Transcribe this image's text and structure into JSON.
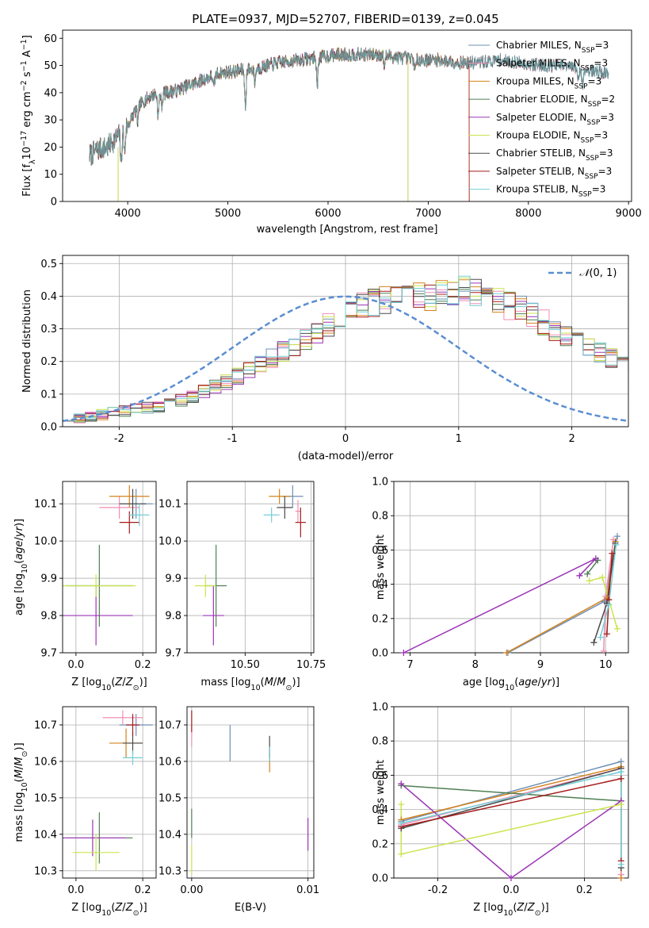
{
  "figure": {
    "title": "PLATE=0937, MJD=52707, FIBERID=0139, z=0.045"
  },
  "colors": {
    "Chabrier MILES": "#6e8fb3",
    "Salpeter MILES": "#f08fb4",
    "Kroupa MILES": "#d4821c",
    "Chabrier ELODIE": "#4f7f52",
    "Salpeter ELODIE": "#9b34b6",
    "Kroupa ELODIE": "#cbe44e",
    "Chabrier STELIB": "#4a4a4a",
    "Salpeter STELIB": "#a51c1c",
    "Kroupa STELIB": "#74cfd6",
    "normal": "#5b8ed0",
    "grid": "#b0b0b0"
  },
  "chart_data": [
    {
      "id": "spectrum",
      "type": "line",
      "title": "PLATE=0937, MJD=52707, FIBERID=0139, z=0.045",
      "xlabel": "wavelength [Angstrom, rest frame]",
      "ylabel": "Flux [fλ10⁻¹⁷ erg cm⁻² s⁻¹ A⁻¹]",
      "xlim": [
        3350,
        9030
      ],
      "ylim": [
        0,
        63
      ],
      "xticks": [
        4000,
        5000,
        6000,
        7000,
        8000,
        9000
      ],
      "yticks": [
        0,
        10,
        20,
        30,
        40,
        50,
        60
      ],
      "grid": false,
      "legend_position": "top-right",
      "x_range": [
        3620,
        8800
      ],
      "continuum": {
        "x": [
          3620,
          3700,
          3800,
          3900,
          4000,
          4100,
          4200,
          4300,
          4400,
          4500,
          4700,
          4900,
          5100,
          5300,
          5500,
          5700,
          5900,
          6100,
          6300,
          6500,
          6700,
          6900,
          7100,
          7300,
          7500,
          7700,
          7900,
          8100,
          8300,
          8500,
          8800
        ],
        "y": [
          17,
          19,
          20,
          24,
          28,
          35,
          38,
          40,
          40,
          41,
          44,
          47,
          48,
          49,
          51,
          52,
          53,
          54,
          54,
          54,
          53,
          52,
          52,
          51,
          51,
          52,
          51,
          50,
          50,
          49,
          47
        ]
      },
      "absorption_lines": [
        {
          "x": 3934,
          "depth": 12
        },
        {
          "x": 3969,
          "depth": 9
        },
        {
          "x": 4101,
          "depth": 6
        },
        {
          "x": 4304,
          "depth": 9
        },
        {
          "x": 4341,
          "depth": 5
        },
        {
          "x": 4861,
          "depth": 5
        },
        {
          "x": 5175,
          "depth": 14
        },
        {
          "x": 5270,
          "depth": 5
        },
        {
          "x": 5892,
          "depth": 11
        },
        {
          "x": 6563,
          "depth": 4
        },
        {
          "x": 6870,
          "depth": 4
        },
        {
          "x": 8498,
          "depth": 5
        },
        {
          "x": 8542,
          "depth": 7
        }
      ],
      "series": [
        {
          "name": "Chabrier MILES, N_SSP=3",
          "ssp": "SSP",
          "n": "=3",
          "prefix": "Chabrier MILES, N",
          "x_max": 8800
        },
        {
          "name": "Salpeter MILES, N_SSP=3",
          "ssp": "SSP",
          "n": "=3",
          "prefix": "Salpeter MILES, N",
          "x_max": 8800
        },
        {
          "name": "Kroupa MILES, N_SSP=3",
          "ssp": "SSP",
          "n": "=3",
          "prefix": "Kroupa MILES, N",
          "x_max": 7410
        },
        {
          "name": "Chabrier ELODIE, N_SSP=2",
          "ssp": "SSP",
          "n": "=2",
          "prefix": "Chabrier ELODIE, N",
          "x_max": 6800
        },
        {
          "name": "Salpeter ELODIE, N_SSP=3",
          "ssp": "SSP",
          "n": "=3",
          "prefix": "Salpeter ELODIE, N",
          "x_max": 6800
        },
        {
          "name": "Kroupa ELODIE, N_SSP=3",
          "ssp": "SSP",
          "n": "=3",
          "prefix": "Kroupa ELODIE, N",
          "x_max": 6800
        },
        {
          "name": "Chabrier STELIB, N_SSP=3",
          "ssp": "SSP",
          "n": "=3",
          "prefix": "Chabrier STELIB, N",
          "x_max": 8800
        },
        {
          "name": "Salpeter STELIB, N_SSP=3",
          "ssp": "SSP",
          "n": "=3",
          "prefix": "Salpeter STELIB, N",
          "x_max": 7410
        },
        {
          "name": "Kroupa STELIB, N_SSP=3",
          "ssp": "SSP",
          "n": "=3",
          "prefix": "Kroupa STELIB, N",
          "x_max": 8800
        }
      ]
    },
    {
      "id": "residuals",
      "type": "area",
      "xlabel": "(data-model)/error",
      "ylabel": "Normed distribution",
      "xlim": [
        -2.5,
        2.5
      ],
      "ylim": [
        0,
        0.525
      ],
      "xticks": [
        -2,
        -1,
        0,
        1,
        2
      ],
      "yticks": [
        0.0,
        0.1,
        0.2,
        0.3,
        0.4,
        0.5
      ],
      "grid": true,
      "legend_position": "top-right",
      "normal_curve": {
        "name": "N(0,1)",
        "mu": 0,
        "sigma": 1
      },
      "bin_start": -2.5,
      "bin_width": 0.1,
      "base_histogram": [
        0.022,
        0.028,
        0.032,
        0.038,
        0.042,
        0.048,
        0.052,
        0.058,
        0.065,
        0.073,
        0.082,
        0.095,
        0.108,
        0.12,
        0.138,
        0.155,
        0.175,
        0.19,
        0.21,
        0.23,
        0.245,
        0.265,
        0.29,
        0.31,
        0.33,
        0.35,
        0.37,
        0.38,
        0.39,
        0.4,
        0.42,
        0.41,
        0.39,
        0.41,
        0.4,
        0.42,
        0.41,
        0.4,
        0.39,
        0.37,
        0.36,
        0.34,
        0.32,
        0.3,
        0.28,
        0.26,
        0.24,
        0.23,
        0.21,
        0.19,
        0.17,
        0.155,
        0.14,
        0.12,
        0.11,
        0.095,
        0.085,
        0.07,
        0.06,
        0.05,
        0.045,
        0.04,
        0.035,
        0.03,
        0.028,
        0.025,
        0.022,
        0.02,
        0.018,
        0.016
      ]
    },
    {
      "id": "age-vs-z",
      "type": "scatter",
      "xlabel": "Z [log10(Z/Z⊙)]",
      "ylabel": "age  [log10(age/yr)]",
      "xlim": [
        -0.04,
        0.24
      ],
      "ylim": [
        9.7,
        10.16
      ],
      "xticks": [
        0.0,
        0.2
      ],
      "yticks": [
        9.7,
        9.8,
        9.9,
        10.0,
        10.1
      ],
      "grid": true,
      "points": [
        {
          "s": 0,
          "x": 0.18,
          "y": 10.1,
          "xerr": 0.05,
          "yerr": 0.04
        },
        {
          "s": 1,
          "x": 0.13,
          "y": 10.09,
          "xerr": 0.06,
          "yerr": 0.03
        },
        {
          "s": 2,
          "x": 0.16,
          "y": 10.12,
          "xerr": 0.06,
          "yerr": 0.03
        },
        {
          "s": 3,
          "x": 0.07,
          "y": 9.88,
          "xerr": 0.1,
          "yerr": 0.11
        },
        {
          "s": 4,
          "x": 0.06,
          "y": 9.8,
          "xerr": 0.11,
          "yerr": 0.08
        },
        {
          "s": 5,
          "x": 0.06,
          "y": 9.88,
          "xerr": 0.12,
          "yerr": 0.03
        },
        {
          "s": 6,
          "x": 0.17,
          "y": 10.1,
          "xerr": 0.04,
          "yerr": 0.04
        },
        {
          "s": 7,
          "x": 0.16,
          "y": 10.05,
          "xerr": 0.03,
          "yerr": 0.03
        },
        {
          "s": 8,
          "x": 0.19,
          "y": 10.07,
          "xerr": 0.03,
          "yerr": 0.03
        }
      ]
    },
    {
      "id": "age-vs-mass",
      "type": "scatter",
      "xlabel": "mass [log10(M/M⊙)]",
      "xlim": [
        10.28,
        10.76
      ],
      "ylim": [
        9.7,
        10.16
      ],
      "xticks": [
        10.5,
        10.75
      ],
      "yticks": [
        9.7,
        9.8,
        9.9,
        10.0,
        10.1
      ],
      "grid": true,
      "points": [
        {
          "s": 0,
          "x": 10.68,
          "y": 10.12,
          "xerr": 0.04,
          "yerr": 0.03
        },
        {
          "s": 1,
          "x": 10.7,
          "y": 10.08,
          "xerr": 0.01,
          "yerr": 0.03
        },
        {
          "s": 2,
          "x": 10.63,
          "y": 10.12,
          "xerr": 0.04,
          "yerr": 0.02
        },
        {
          "s": 3,
          "x": 10.39,
          "y": 9.88,
          "xerr": 0.04,
          "yerr": 0.11
        },
        {
          "s": 4,
          "x": 10.38,
          "y": 9.8,
          "xerr": 0.04,
          "yerr": 0.08
        },
        {
          "s": 5,
          "x": 10.35,
          "y": 9.88,
          "xerr": 0.04,
          "yerr": 0.03
        },
        {
          "s": 6,
          "x": 10.65,
          "y": 10.09,
          "xerr": 0.03,
          "yerr": 0.03
        },
        {
          "s": 7,
          "x": 10.71,
          "y": 10.05,
          "xerr": 0.02,
          "yerr": 0.04
        },
        {
          "s": 8,
          "x": 10.6,
          "y": 10.07,
          "xerr": 0.03,
          "yerr": 0.02
        }
      ]
    },
    {
      "id": "weight-vs-age",
      "type": "line",
      "xlabel": "age  [log10(age/yr)]",
      "ylabel": "mass weight",
      "xlim": [
        6.75,
        10.35
      ],
      "ylim": [
        0,
        1.0
      ],
      "xticks": [
        7,
        8,
        9,
        10
      ],
      "yticks": [
        0.0,
        0.2,
        0.4,
        0.6,
        0.8,
        1.0
      ],
      "grid": true,
      "series": [
        {
          "s": 0,
          "x": [
            10.18,
            9.98,
            8.5
          ],
          "y": [
            0.68,
            0.3,
            0.0
          ]
        },
        {
          "s": 1,
          "x": [
            10.12,
            10.0,
            9.97
          ],
          "y": [
            0.66,
            0.33,
            0.01
          ]
        },
        {
          "s": 2,
          "x": [
            10.15,
            10.02,
            8.48
          ],
          "y": [
            0.65,
            0.32,
            0.0
          ]
        },
        {
          "s": 3,
          "x": [
            9.72,
            9.88
          ],
          "y": [
            0.46,
            0.54
          ]
        },
        {
          "s": 4,
          "x": [
            9.6,
            9.85,
            6.9
          ],
          "y": [
            0.45,
            0.55,
            0.0
          ]
        },
        {
          "s": 5,
          "x": [
            9.75,
            9.95,
            10.18
          ],
          "y": [
            0.42,
            0.44,
            0.14
          ]
        },
        {
          "s": 6,
          "x": [
            10.15,
            10.02,
            9.82
          ],
          "y": [
            0.64,
            0.29,
            0.06
          ]
        },
        {
          "s": 7,
          "x": [
            10.1,
            10.05,
            10.02
          ],
          "y": [
            0.58,
            0.31,
            0.11
          ]
        },
        {
          "s": 8,
          "x": [
            10.16,
            10.05,
            9.92
          ],
          "y": [
            0.63,
            0.28,
            0.09
          ]
        }
      ]
    },
    {
      "id": "mass-vs-z",
      "type": "scatter",
      "xlabel": "Z [log10(Z/Z⊙)]",
      "ylabel": "mass [log10(M/M⊙)]",
      "xlim": [
        -0.04,
        0.24
      ],
      "ylim": [
        10.28,
        10.75
      ],
      "xticks": [
        0.0,
        0.2
      ],
      "yticks": [
        10.3,
        10.4,
        10.5,
        10.6,
        10.7
      ],
      "grid": true,
      "points": [
        {
          "s": 0,
          "x": 0.18,
          "y": 10.7,
          "xerr": 0.05,
          "yerr": 0.03
        },
        {
          "s": 1,
          "x": 0.14,
          "y": 10.72,
          "xerr": 0.06,
          "yerr": 0.02
        },
        {
          "s": 2,
          "x": 0.15,
          "y": 10.65,
          "xerr": 0.05,
          "yerr": 0.04
        },
        {
          "s": 3,
          "x": 0.07,
          "y": 10.39,
          "xerr": 0.1,
          "yerr": 0.07
        },
        {
          "s": 4,
          "x": 0.05,
          "y": 10.39,
          "xerr": 0.1,
          "yerr": 0.05
        },
        {
          "s": 5,
          "x": 0.06,
          "y": 10.35,
          "xerr": 0.07,
          "yerr": 0.05
        },
        {
          "s": 6,
          "x": 0.17,
          "y": 10.65,
          "xerr": 0.03,
          "yerr": 0.03
        },
        {
          "s": 7,
          "x": 0.17,
          "y": 10.7,
          "xerr": 0.02,
          "yerr": 0.03
        },
        {
          "s": 8,
          "x": 0.17,
          "y": 10.61,
          "xerr": 0.03,
          "yerr": 0.02
        }
      ]
    },
    {
      "id": "mass-vs-ebv",
      "type": "scatter",
      "xlabel": "E(B-V)",
      "xlim": [
        -0.0004,
        0.0105
      ],
      "ylim": [
        10.28,
        10.75
      ],
      "xticks": [
        0.0,
        0.01
      ],
      "xtick_labels": [
        "0.00",
        "0.01"
      ],
      "yticks": [
        10.3,
        10.4,
        10.5,
        10.6,
        10.7
      ],
      "grid": true,
      "points": [
        {
          "s": 0,
          "x": 0.0033,
          "y": 10.65,
          "xerr": 0,
          "yerr": 0.05
        },
        {
          "s": 1,
          "x": 0.0,
          "y": 10.67,
          "xerr": 0,
          "yerr": 0.03
        },
        {
          "s": 2,
          "x": 0.0067,
          "y": 10.6,
          "xerr": 0,
          "yerr": 0.03
        },
        {
          "s": 3,
          "x": 0.0,
          "y": 10.43,
          "xerr": 0,
          "yerr": 0.04
        },
        {
          "s": 4,
          "x": 0.01,
          "y": 10.4,
          "xerr": 0,
          "yerr": 0.045
        },
        {
          "s": 5,
          "x": 0.0,
          "y": 10.33,
          "xerr": 0,
          "yerr": 0.04
        },
        {
          "s": 6,
          "x": 0.0067,
          "y": 10.64,
          "xerr": 0,
          "yerr": 0.03
        },
        {
          "s": 7,
          "x": 0.0,
          "y": 10.71,
          "xerr": 0,
          "yerr": 0.03
        },
        {
          "s": 8,
          "x": 0.0067,
          "y": 10.62,
          "xerr": 0,
          "yerr": 0.02
        }
      ]
    },
    {
      "id": "weight-vs-z",
      "type": "line",
      "xlabel": "Z [log10(Z/Z⊙)]",
      "ylabel": "mass weight",
      "xlim": [
        -0.32,
        0.32
      ],
      "ylim": [
        0,
        1.0
      ],
      "xticks": [
        -0.2,
        0.0,
        0.2
      ],
      "yticks": [
        0.0,
        0.2,
        0.4,
        0.6,
        0.8,
        1.0
      ],
      "grid": true,
      "series": [
        {
          "s": 0,
          "x": [
            -0.3,
            0.3,
            0.3
          ],
          "y": [
            0.33,
            0.68,
            0.0
          ]
        },
        {
          "s": 1,
          "x": [
            -0.3,
            0.3,
            0.3
          ],
          "y": [
            0.31,
            0.64,
            0.02
          ]
        },
        {
          "s": 2,
          "x": [
            -0.3,
            0.3,
            0.3
          ],
          "y": [
            0.34,
            0.65,
            0.0
          ]
        },
        {
          "s": 3,
          "x": [
            -0.3,
            0.3
          ],
          "y": [
            0.54,
            0.45
          ]
        },
        {
          "s": 4,
          "x": [
            -0.3,
            0.0,
            0.3
          ],
          "y": [
            0.55,
            0.0,
            0.45
          ]
        },
        {
          "s": 5,
          "x": [
            -0.3,
            -0.3,
            0.3
          ],
          "y": [
            0.43,
            0.14,
            0.43
          ]
        },
        {
          "s": 6,
          "x": [
            -0.3,
            0.3,
            0.3
          ],
          "y": [
            0.29,
            0.64,
            0.06
          ]
        },
        {
          "s": 7,
          "x": [
            -0.3,
            0.3,
            0.3
          ],
          "y": [
            0.3,
            0.58,
            0.1
          ]
        },
        {
          "s": 8,
          "x": [
            -0.3,
            0.3,
            0.3
          ],
          "y": [
            0.32,
            0.62,
            0.08
          ]
        }
      ]
    }
  ]
}
